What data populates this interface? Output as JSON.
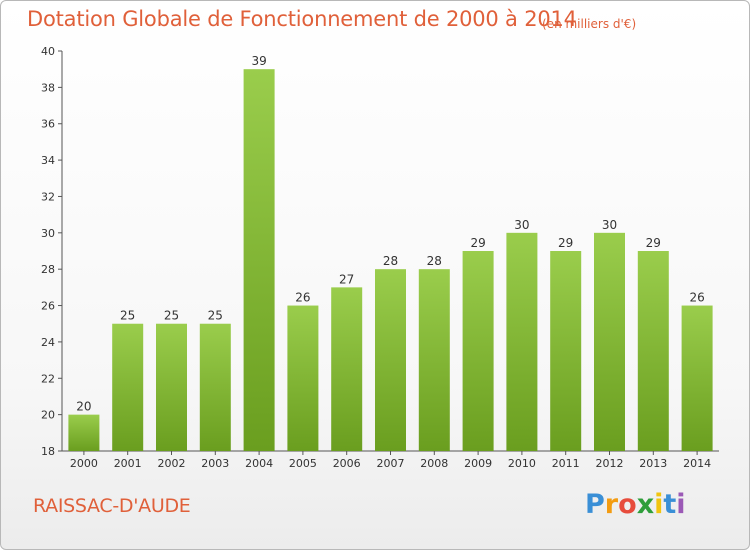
{
  "header": {
    "title": "Dotation Globale de Fonctionnement de 2000 à 2014",
    "subtitle": "(en milliers d'€)"
  },
  "footer": {
    "commune": "RAISSAC-D'AUDE",
    "logo_text": "Proxiti",
    "logo_colors": [
      "#3a8fd6",
      "#f39c12",
      "#e74c3c",
      "#2e9e3a",
      "#f1c40f",
      "#3a8fd6",
      "#9b59b6"
    ]
  },
  "colors": {
    "bar_top": "#9acd4c",
    "bar_bottom": "#6a9e1f",
    "text_accent": "#e0603a"
  },
  "chart_data": {
    "type": "bar",
    "title": "Dotation Globale de Fonctionnement de 2000 à 2014",
    "subtitle": "(en milliers d'€)",
    "xlabel": "",
    "ylabel": "",
    "categories": [
      "2000",
      "2001",
      "2002",
      "2003",
      "2004",
      "2005",
      "2006",
      "2007",
      "2008",
      "2009",
      "2010",
      "2011",
      "2012",
      "2013",
      "2014"
    ],
    "values": [
      20,
      25,
      25,
      25,
      39,
      26,
      27,
      28,
      28,
      29,
      30,
      29,
      30,
      29,
      26
    ],
    "ylim": [
      18,
      40
    ],
    "yticks": [
      18,
      20,
      22,
      24,
      26,
      28,
      30,
      32,
      34,
      36,
      38,
      40
    ],
    "grid": false,
    "legend": "none",
    "data_labels": true
  }
}
